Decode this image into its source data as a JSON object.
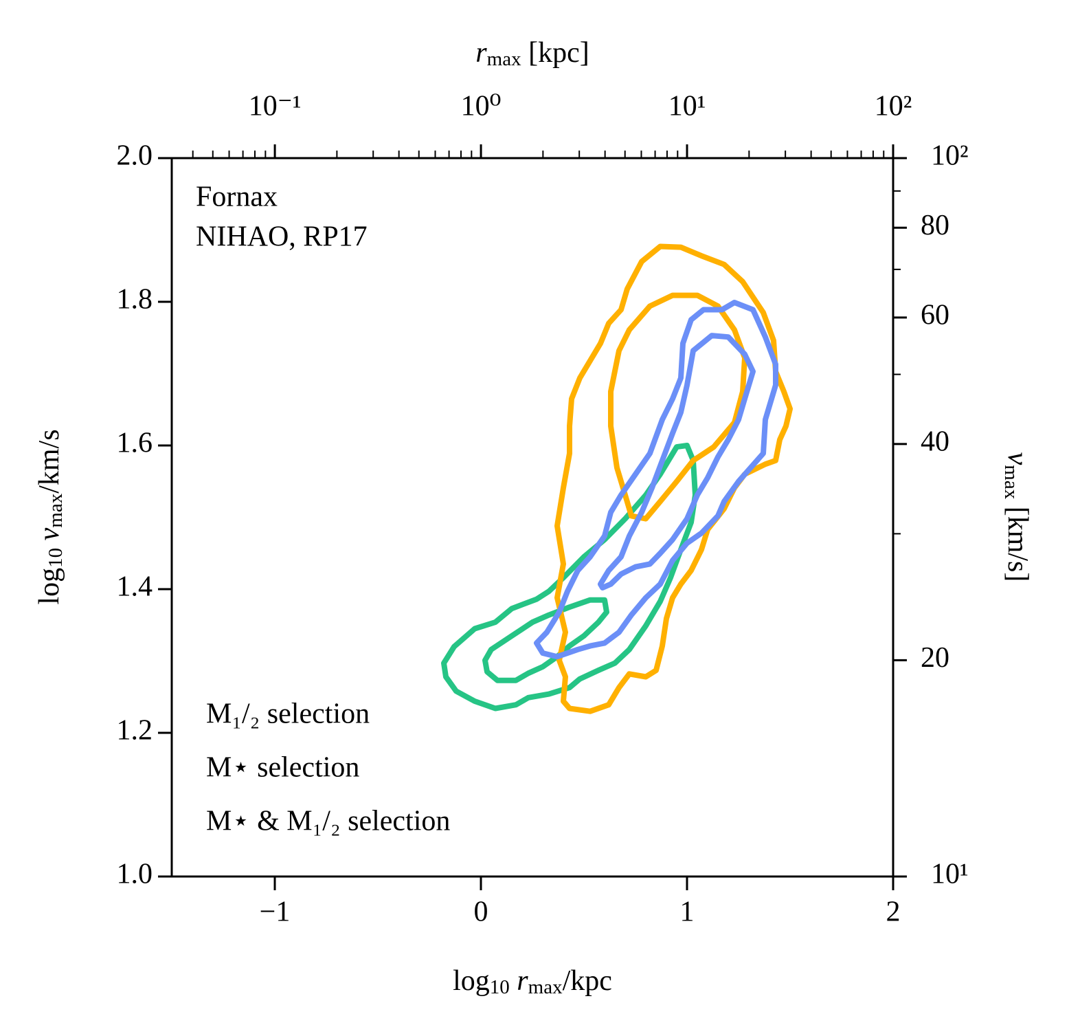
{
  "chart_data": {
    "type": "contour",
    "xlabel": [
      "log",
      "10",
      " r",
      "max",
      "/kpc"
    ],
    "ylabel": [
      "log",
      "10",
      " v",
      "max",
      "/km/s"
    ],
    "x2label": [
      "r",
      "max",
      " [kpc]"
    ],
    "y2label": [
      "v",
      "max",
      " [km/s]"
    ],
    "annotations": [
      "Fornax",
      "NIHAO, RP17"
    ],
    "xlim": [
      -1.5,
      2
    ],
    "xticks": [
      {
        "value": -1,
        "label": "−1"
      },
      0,
      1,
      2
    ],
    "ylim": [
      1,
      2
    ],
    "yticks": [
      {
        "value": 1,
        "label": "1.0"
      },
      1.2,
      1.4,
      1.6,
      1.8,
      {
        "value": 2,
        "label": "2.0"
      }
    ],
    "x2lim": [
      0.0316,
      100
    ],
    "x2scale": "log",
    "x2ticks": [
      {
        "value": 0.1,
        "label": "10⁻¹"
      },
      {
        "value": 1,
        "label": "10⁰"
      },
      {
        "value": 10,
        "label": "10¹"
      },
      {
        "value": 100,
        "label": "10²"
      }
    ],
    "x2minorticks": [
      0.04,
      0.05,
      0.06,
      0.07,
      0.08,
      0.09,
      0.2,
      0.3,
      0.4,
      0.5,
      0.6,
      0.7,
      0.8,
      0.9,
      2,
      3,
      4,
      5,
      6,
      7,
      8,
      9,
      20,
      30,
      40,
      50,
      60,
      70,
      80,
      90
    ],
    "y2lim": [
      10,
      100
    ],
    "y2scale": "log",
    "y2ticks": [
      {
        "value": 10,
        "label": "10¹"
      },
      20,
      40,
      60,
      80,
      {
        "value": 100,
        "label": "10²"
      }
    ],
    "y2minorticks": [
      30,
      50,
      70,
      90
    ],
    "series": [
      {
        "name": "M₁/₂ selection",
        "color": "#26c485",
        "contours": [
          {
            "x": [
              -0.18,
              -0.13,
              -0.03,
              0.07,
              0.15,
              0.27,
              0.33,
              0.4,
              0.5,
              0.6,
              0.7,
              0.8,
              0.87,
              0.95,
              1.0,
              1.03,
              1.04,
              1.02,
              0.97,
              0.92,
              0.87,
              0.8,
              0.72,
              0.65,
              0.57,
              0.48,
              0.43,
              0.33,
              0.23,
              0.17,
              0.07,
              -0.03,
              -0.12,
              -0.17
            ],
            "y": [
              1.297,
              1.32,
              1.345,
              1.354,
              1.373,
              1.386,
              1.397,
              1.416,
              1.445,
              1.469,
              1.498,
              1.531,
              1.56,
              1.598,
              1.6,
              1.579,
              1.531,
              1.493,
              1.455,
              1.416,
              1.383,
              1.349,
              1.316,
              1.297,
              1.287,
              1.275,
              1.263,
              1.254,
              1.249,
              1.239,
              1.234,
              1.244,
              1.258,
              1.278
            ]
          },
          {
            "x": [
              0.02,
              0.05,
              0.15,
              0.25,
              0.33,
              0.43,
              0.53,
              0.6,
              0.61,
              0.57,
              0.5,
              0.43,
              0.37,
              0.3,
              0.23,
              0.17,
              0.08,
              0.03
            ],
            "y": [
              1.301,
              1.316,
              1.335,
              1.354,
              1.364,
              1.375,
              1.385,
              1.385,
              1.368,
              1.354,
              1.335,
              1.321,
              1.306,
              1.292,
              1.283,
              1.273,
              1.273,
              1.285
            ]
          }
        ]
      },
      {
        "name": "M⋆ selection",
        "color": "#ffb000",
        "contours": [
          {
            "x": [
              0.4,
              0.41,
              0.38,
              0.41,
              0.37,
              0.4,
              0.37,
              0.4,
              0.43,
              0.43,
              0.44,
              0.48,
              0.58,
              0.62,
              0.68,
              0.71,
              0.78,
              0.87,
              0.97,
              1.07,
              1.18,
              1.27,
              1.37,
              1.42,
              1.43,
              1.47,
              1.5,
              1.48,
              1.45,
              1.43,
              1.38,
              1.28,
              1.23,
              1.18,
              1.1,
              1.07,
              1.02,
              0.97,
              0.93,
              0.9,
              0.88,
              0.85,
              0.8,
              0.72,
              0.67,
              0.62,
              0.53,
              0.43
            ],
            "y": [
              1.244,
              1.278,
              1.301,
              1.34,
              1.388,
              1.435,
              1.488,
              1.541,
              1.589,
              1.627,
              1.665,
              1.694,
              1.742,
              1.77,
              1.789,
              1.818,
              1.856,
              1.877,
              1.876,
              1.864,
              1.852,
              1.828,
              1.785,
              1.746,
              1.703,
              1.675,
              1.651,
              1.627,
              1.608,
              1.579,
              1.574,
              1.56,
              1.541,
              1.512,
              1.483,
              1.455,
              1.426,
              1.407,
              1.388,
              1.359,
              1.321,
              1.287,
              1.278,
              1.282,
              1.263,
              1.239,
              1.23,
              1.234
            ]
          },
          {
            "x": [
              0.7,
              0.66,
              0.63,
              0.63,
              0.67,
              0.72,
              0.82,
              0.93,
              1.05,
              1.15,
              1.23,
              1.28,
              1.27,
              1.23,
              1.13,
              1.03,
              0.95,
              0.87,
              0.8,
              0.73
            ],
            "y": [
              1.531,
              1.569,
              1.627,
              1.675,
              1.732,
              1.761,
              1.794,
              1.809,
              1.809,
              1.794,
              1.761,
              1.722,
              1.675,
              1.632,
              1.598,
              1.579,
              1.55,
              1.522,
              1.498,
              1.502
            ]
          }
        ]
      },
      {
        "name": "M⋆ & M₁/₂ selection",
        "color": "#6b8ff7",
        "contours": [
          {
            "x": [
              0.27,
              0.32,
              0.38,
              0.42,
              0.47,
              0.53,
              0.6,
              0.63,
              0.68,
              0.75,
              0.82,
              0.88,
              0.93,
              0.97,
              0.98,
              1.02,
              1.08,
              1.17,
              1.23,
              1.32,
              1.38,
              1.43,
              1.43,
              1.38,
              1.37,
              1.25,
              1.18,
              1.15,
              1.07,
              1.0,
              0.93,
              0.87,
              0.8,
              0.73,
              0.67,
              0.6,
              0.53,
              0.47,
              0.37,
              0.3
            ],
            "y": [
              1.325,
              1.34,
              1.368,
              1.397,
              1.426,
              1.445,
              1.474,
              1.507,
              1.531,
              1.56,
              1.589,
              1.636,
              1.665,
              1.694,
              1.742,
              1.775,
              1.789,
              1.789,
              1.799,
              1.789,
              1.751,
              1.713,
              1.684,
              1.636,
              1.589,
              1.55,
              1.522,
              1.502,
              1.478,
              1.464,
              1.44,
              1.407,
              1.388,
              1.364,
              1.34,
              1.325,
              1.321,
              1.316,
              1.306,
              1.311
            ]
          },
          {
            "x": [
              0.58,
              0.62,
              0.68,
              0.72,
              0.78,
              0.83,
              0.88,
              0.93,
              0.97,
              1.0,
              1.03,
              1.12,
              1.2,
              1.28,
              1.32,
              1.28,
              1.25,
              1.2,
              1.15,
              1.1,
              1.05,
              1.0,
              0.93,
              0.87,
              0.82,
              0.75,
              0.68,
              0.63,
              0.59
            ],
            "y": [
              1.407,
              1.426,
              1.445,
              1.474,
              1.507,
              1.541,
              1.579,
              1.617,
              1.646,
              1.684,
              1.732,
              1.753,
              1.751,
              1.727,
              1.703,
              1.665,
              1.636,
              1.608,
              1.584,
              1.555,
              1.531,
              1.498,
              1.469,
              1.45,
              1.435,
              1.431,
              1.421,
              1.407,
              1.402
            ]
          }
        ]
      }
    ]
  }
}
